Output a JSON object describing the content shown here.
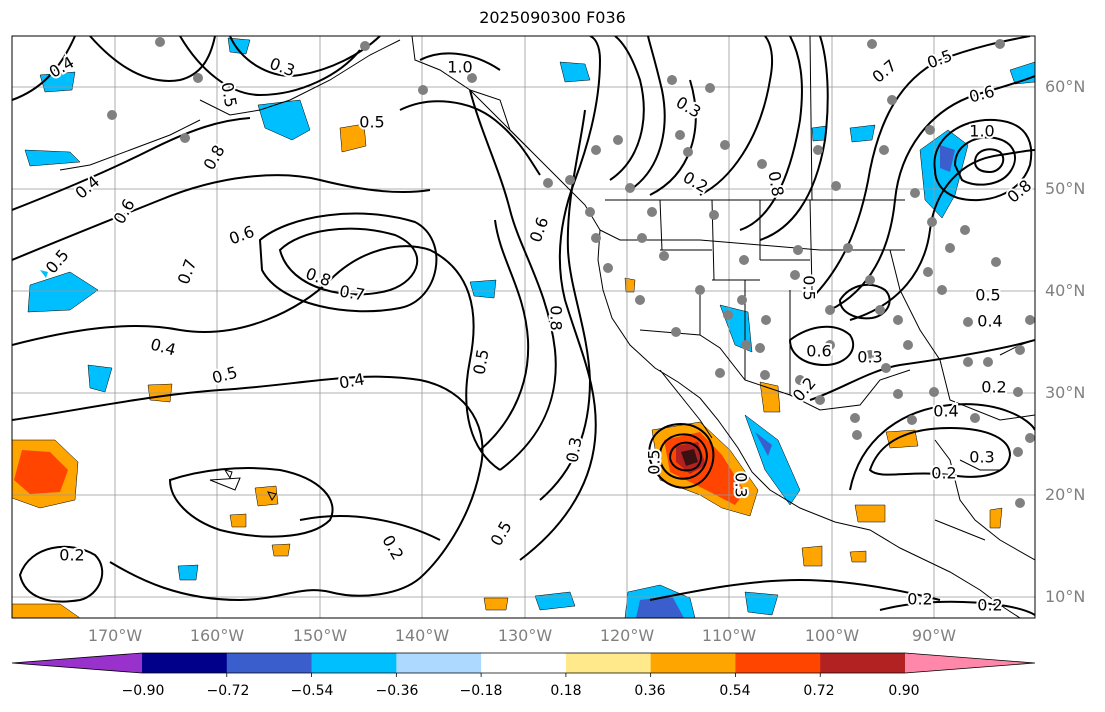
{
  "title": "2025090300 F036",
  "lat_labels": [
    "60°N",
    "50°N",
    "40°N",
    "30°N",
    "20°N",
    "10°N"
  ],
  "lon_labels": [
    "170°W",
    "160°W",
    "150°W",
    "140°W",
    "130°W",
    "120°W",
    "110°W",
    "100°W",
    "90°W"
  ],
  "colorbar": {
    "tick_labels": [
      "−0.90",
      "−0.72",
      "−0.54",
      "−0.36",
      "−0.18",
      "0.18",
      "0.36",
      "0.54",
      "0.72",
      "0.90"
    ],
    "colors": [
      "#9932cc",
      "#00008b",
      "#3a5fcd",
      "#00bfff",
      "#add8ff",
      "#ffffff",
      "#ffe98a",
      "#ffa500",
      "#ff4500",
      "#b22222",
      "#ff88aa"
    ]
  },
  "contour_labels": [
    {
      "text": "0.4"
    },
    {
      "text": "0.3"
    },
    {
      "text": "0.5"
    },
    {
      "text": "0.8"
    },
    {
      "text": "0.6"
    },
    {
      "text": "0.4"
    },
    {
      "text": "0.5"
    },
    {
      "text": "0.7"
    },
    {
      "text": "0.6"
    },
    {
      "text": "0.8"
    },
    {
      "text": "0.7"
    },
    {
      "text": "0.4"
    },
    {
      "text": "0.5"
    },
    {
      "text": "0.4"
    },
    {
      "text": "1.0"
    },
    {
      "text": "0.5"
    },
    {
      "text": "0.6"
    },
    {
      "text": "0.8"
    },
    {
      "text": "0.5"
    },
    {
      "text": "0.3"
    },
    {
      "text": "0.5"
    },
    {
      "text": "0.2"
    },
    {
      "text": "0.3"
    },
    {
      "text": "0.2"
    },
    {
      "text": "0.8"
    },
    {
      "text": "0.5"
    },
    {
      "text": "0.6"
    },
    {
      "text": "0.3"
    },
    {
      "text": "0.2"
    },
    {
      "text": "0.7"
    },
    {
      "text": "0.5"
    },
    {
      "text": "0.6"
    },
    {
      "text": "1.0"
    },
    {
      "text": "0.8"
    },
    {
      "text": "0.5"
    },
    {
      "text": "0.4"
    },
    {
      "text": "0.4"
    },
    {
      "text": "0.3"
    },
    {
      "text": "0.2"
    },
    {
      "text": "0.2"
    },
    {
      "text": "0.2"
    },
    {
      "text": "0.2"
    },
    {
      "text": "0.2"
    },
    {
      "text": "0.3"
    },
    {
      "text": "0.5"
    }
  ]
}
